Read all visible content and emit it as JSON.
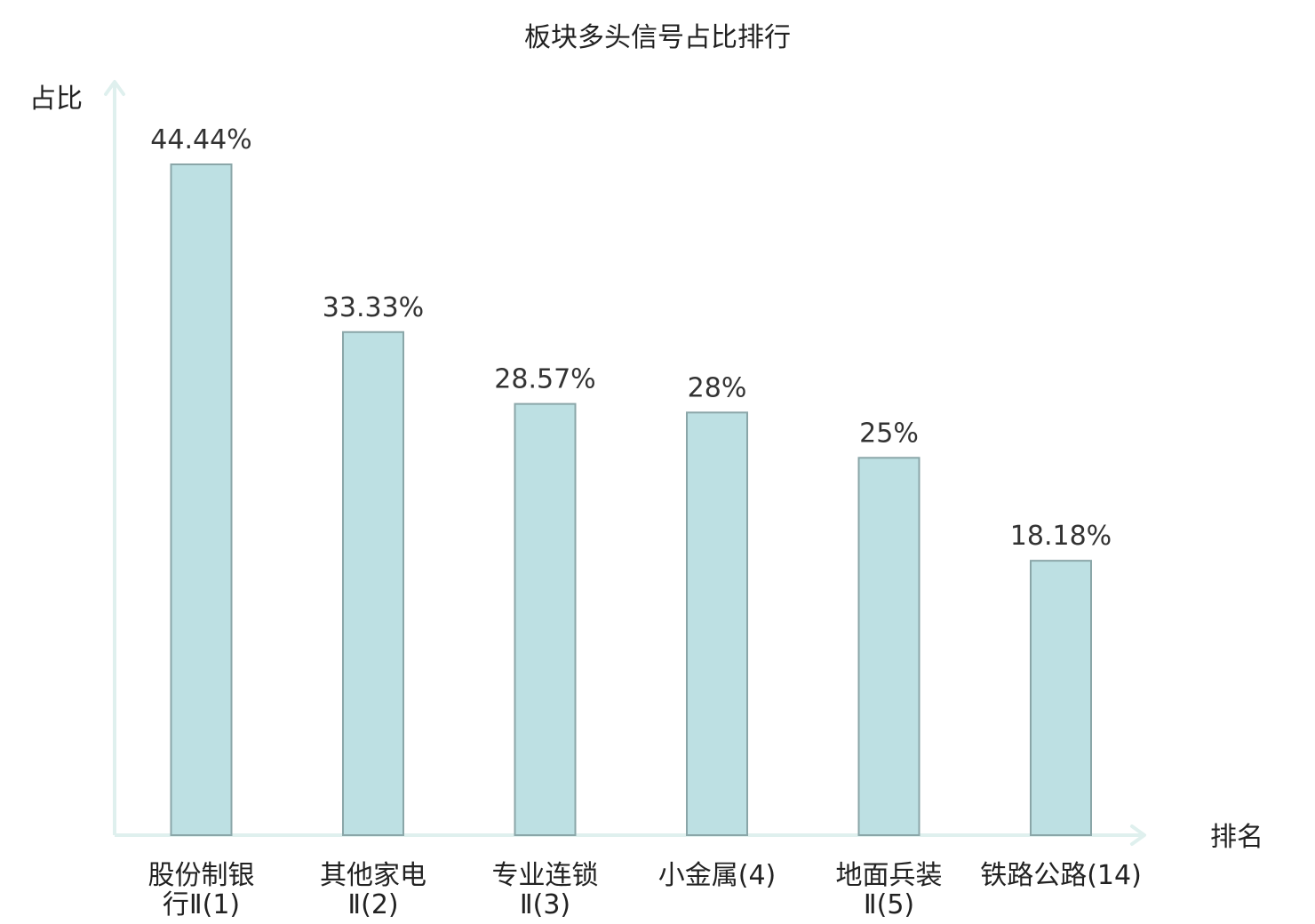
{
  "chart_data": {
    "type": "bar",
    "title": "板块多头信号占比排行",
    "ylabel": "占比",
    "xlabel": "排名",
    "categories": [
      [
        "股份制银",
        "行Ⅱ(1)"
      ],
      [
        "其他家电",
        "Ⅱ(2)"
      ],
      [
        "专业连锁",
        "Ⅱ(3)"
      ],
      [
        "小金属(4)"
      ],
      [
        "地面兵装",
        "Ⅱ(5)"
      ],
      [
        "铁路公路(14)"
      ]
    ],
    "values": [
      44.44,
      33.33,
      28.57,
      28,
      25,
      18.18
    ],
    "value_labels": [
      "44.44%",
      "33.33%",
      "28.57%",
      "28%",
      "25%",
      "18.18%"
    ],
    "highlight_index": 5,
    "ylim": [
      0,
      50
    ],
    "grid": false,
    "colors": {
      "bar_fill": "#bde0e3",
      "bar_stroke": "#8aa6a8",
      "axis": "#dff0ee",
      "highlight_text": "#e0201b",
      "text": "#222222"
    }
  }
}
